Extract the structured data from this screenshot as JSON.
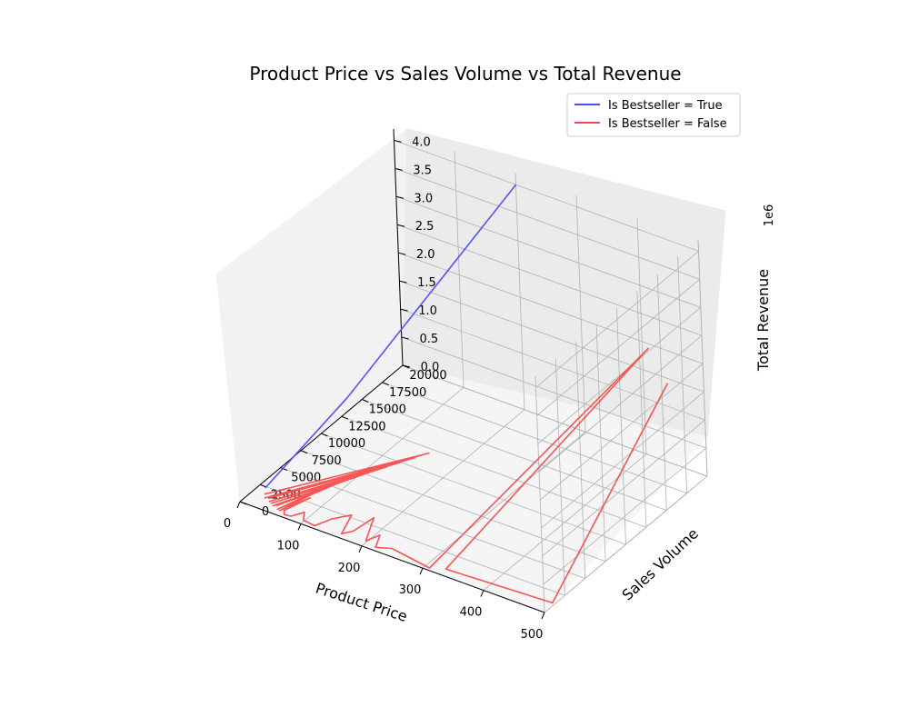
{
  "chart_data": {
    "type": "line",
    "title": "Product Price vs Sales Volume vs Total Revenue",
    "xlabel": "Product Price",
    "ylabel": "Sales Volume",
    "zlabel": "Total Revenue",
    "z_offset_label": "1e6",
    "xlim": [
      0,
      500
    ],
    "ylim": [
      0,
      20000
    ],
    "zlim": [
      0,
      4
    ],
    "x_ticks": [
      "0",
      "100",
      "200",
      "300",
      "400",
      "500"
    ],
    "y_ticks": [
      "0",
      "2500",
      "5000",
      "7500",
      "10000",
      "12500",
      "15000",
      "17500",
      "20000"
    ],
    "z_ticks": [
      "0.0",
      "0.5",
      "1.0",
      "1.5",
      "2.0",
      "2.5",
      "3.0",
      "3.5",
      "4.0"
    ],
    "grid": true,
    "legend_position": "top-right",
    "series": [
      {
        "name": "Is Bestseller = True",
        "color": "#4d4df5",
        "points": [
          [
            15,
            2000,
            0.06
          ],
          [
            60,
            9000,
            1.0
          ],
          [
            200,
            20000,
            4.0
          ]
        ]
      },
      {
        "name": "Is Bestseller = False",
        "color": "#f54d4d",
        "points": [
          [
            20,
            1500,
            0.03
          ],
          [
            150,
            12000,
            0.0
          ],
          [
            25,
            1200,
            0.02
          ],
          [
            140,
            11000,
            0.0
          ],
          [
            30,
            1300,
            0.02
          ],
          [
            130,
            10000,
            0.0
          ],
          [
            35,
            1000,
            0.02
          ],
          [
            120,
            9000,
            0.0
          ],
          [
            40,
            900,
            0.02
          ],
          [
            110,
            8000,
            0.0
          ],
          [
            45,
            700,
            0.02
          ],
          [
            100,
            7000,
            0.0
          ],
          [
            50,
            800,
            0.03
          ],
          [
            90,
            6000,
            0.0
          ],
          [
            55,
            500,
            0.02
          ],
          [
            80,
            5000,
            0.0
          ],
          [
            60,
            400,
            0.03
          ],
          [
            75,
            3000,
            0.0
          ],
          [
            65,
            600,
            0.03
          ],
          [
            70,
            200,
            0.02
          ],
          [
            80,
            300,
            0.02
          ],
          [
            90,
            1200,
            0.02
          ],
          [
            100,
            300,
            0.03
          ],
          [
            120,
            200,
            0.02
          ],
          [
            130,
            1500,
            0.02
          ],
          [
            150,
            2500,
            0.05
          ],
          [
            160,
            500,
            0.0
          ],
          [
            170,
            1200,
            0.0
          ],
          [
            180,
            3000,
            0.06
          ],
          [
            200,
            500,
            0.03
          ],
          [
            210,
            1500,
            0.05
          ],
          [
            220,
            200,
            0.03
          ],
          [
            240,
            700,
            0.03
          ],
          [
            310,
            100,
            0.03
          ],
          [
            480,
            15000,
            2.8
          ],
          [
            330,
            600,
            0.03
          ],
          [
            500,
            1000,
            0.05
          ],
          [
            510,
            15000,
            2.3
          ]
        ]
      }
    ]
  }
}
